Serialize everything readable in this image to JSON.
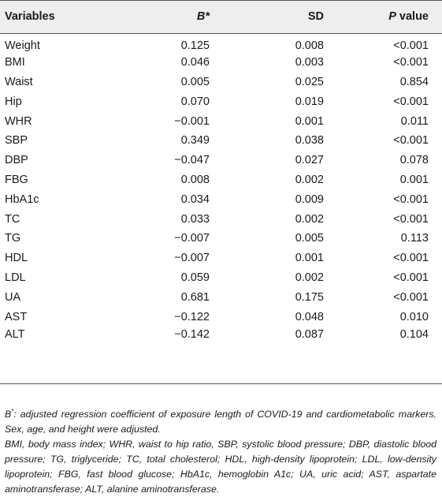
{
  "table": {
    "headers": {
      "variables": "Variables",
      "b": "B*",
      "sd": "SD",
      "p_italic": "P",
      "p_rest": " value"
    },
    "rows": [
      {
        "variable": "Weight",
        "b": "0.125",
        "sd": "0.008",
        "p": "<0.001"
      },
      {
        "variable": "BMI",
        "b": "0.046",
        "sd": "0.003",
        "p": "<0.001"
      },
      {
        "variable": "Waist",
        "b": "0.005",
        "sd": "0.025",
        "p": "0.854"
      },
      {
        "variable": "Hip",
        "b": "0.070",
        "sd": "0.019",
        "p": "<0.001"
      },
      {
        "variable": "WHR",
        "b": "−0.001",
        "sd": "0.001",
        "p": "0.011"
      },
      {
        "variable": "SBP",
        "b": "0.349",
        "sd": "0.038",
        "p": "<0.001"
      },
      {
        "variable": "DBP",
        "b": "−0.047",
        "sd": "0.027",
        "p": "0.078"
      },
      {
        "variable": "FBG",
        "b": "0.008",
        "sd": "0.002",
        "p": "0.001"
      },
      {
        "variable": "HbA1c",
        "b": "0.034",
        "sd": "0.009",
        "p": "<0.001"
      },
      {
        "variable": "TC",
        "b": "0.033",
        "sd": "0.002",
        "p": "<0.001"
      },
      {
        "variable": "TG",
        "b": "−0.007",
        "sd": "0.005",
        "p": "0.113"
      },
      {
        "variable": "HDL",
        "b": "−0.007",
        "sd": "0.001",
        "p": "<0.001"
      },
      {
        "variable": "LDL",
        "b": "0.059",
        "sd": "0.002",
        "p": "<0.001"
      },
      {
        "variable": "UA",
        "b": "0.681",
        "sd": "0.175",
        "p": "<0.001"
      },
      {
        "variable": "AST",
        "b": "−0.122",
        "sd": "0.048",
        "p": "0.010"
      },
      {
        "variable": "ALT",
        "b": "−0.142",
        "sd": "0.087",
        "p": "0.104"
      }
    ]
  },
  "notes": {
    "footnote_symbol": "B",
    "footnote_star": "*",
    "footnote_text": ": adjusted regression coefficient of exposure length of COVID-19 and cardiometabolic markers. Sex, age, and height were adjusted.",
    "abbreviations": "BMI, body mass index; WHR, waist to hip ratio, SBP, systolic blood pressure; DBP, diastolic blood pressure; TG, triglyceride; TC, total cholesterol; HDL, high-density lipoprotein; LDL, low-density lipoprotein; FBG, fast blood glucose; HbA1c, hemoglobin A1c; UA, uric acid; AST, aspartate aminotransferase; ALT, alanine aminotransferase."
  },
  "colors": {
    "header_bg": "#eeeeee",
    "rule": "#555555",
    "text": "#1a1a1a"
  }
}
